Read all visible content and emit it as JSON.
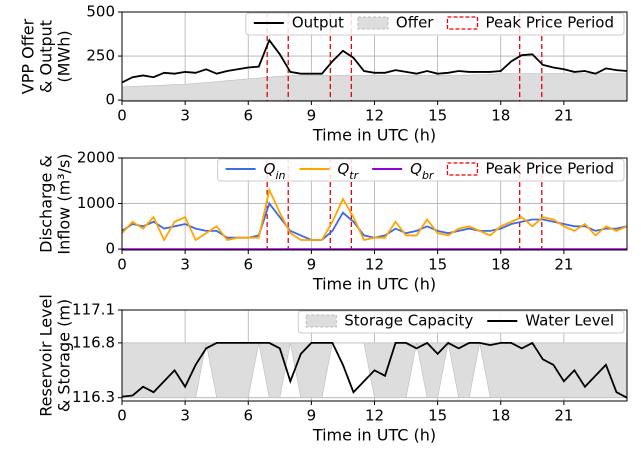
{
  "chart_data": [
    {
      "type": "line",
      "ylabel": [
        "VPP Offer",
        "& Output",
        "(MWh)"
      ],
      "xlabel": "Time in UTC (h)",
      "xlim": [
        0,
        24
      ],
      "xticks": [
        0,
        3,
        6,
        9,
        12,
        15,
        18,
        21
      ],
      "ylim": [
        -5,
        500
      ],
      "yticks": [
        0,
        250,
        500
      ],
      "grid": true,
      "legend": "upper right",
      "x": [
        0,
        0.5,
        1,
        1.5,
        2,
        2.5,
        3,
        3.5,
        4,
        4.5,
        5,
        5.5,
        6,
        6.5,
        7,
        7.5,
        8,
        8.5,
        9,
        9.5,
        10,
        10.5,
        11,
        11.5,
        12,
        12.5,
        13,
        13.5,
        14,
        14.5,
        15,
        15.5,
        16,
        16.5,
        17,
        17.5,
        18,
        18.5,
        19,
        19.5,
        20,
        20.5,
        21,
        21.5,
        22,
        22.5,
        23,
        23.5,
        24
      ],
      "series": [
        {
          "name": "Output",
          "color": "#000000",
          "kind": "line",
          "values": [
            100,
            130,
            140,
            130,
            155,
            150,
            160,
            155,
            175,
            150,
            165,
            175,
            185,
            190,
            340,
            260,
            160,
            150,
            150,
            150,
            220,
            280,
            240,
            165,
            155,
            155,
            170,
            160,
            150,
            165,
            150,
            155,
            165,
            160,
            160,
            160,
            165,
            220,
            255,
            260,
            200,
            185,
            175,
            160,
            165,
            150,
            180,
            170,
            165
          ]
        },
        {
          "name": "Offer",
          "color": "#dddddd",
          "kind": "area",
          "values": [
            75,
            78,
            80,
            82,
            85,
            88,
            90,
            95,
            100,
            105,
            110,
            115,
            120,
            125,
            130,
            135,
            140,
            140,
            140,
            140,
            140,
            140,
            140,
            140,
            140,
            140,
            140,
            140,
            140,
            140,
            140,
            140,
            140,
            142,
            144,
            146,
            150,
            150,
            150,
            150,
            150,
            150,
            150,
            150,
            150,
            150,
            150,
            150,
            150
          ]
        }
      ],
      "peak": {
        "name": "Peak Price Period",
        "color": "#e8000b",
        "periods": [
          [
            6.9,
            7.9
          ],
          [
            9.9,
            10.9
          ],
          [
            18.9,
            19.95
          ]
        ]
      }
    },
    {
      "type": "line",
      "ylabel": [
        "Discharge &",
        "Inflow (m³/s)"
      ],
      "xlabel": "Time in UTC (h)",
      "xlim": [
        0,
        24
      ],
      "xticks": [
        0,
        3,
        6,
        9,
        12,
        15,
        18,
        21
      ],
      "ylim": [
        -20,
        2000
      ],
      "yticks": [
        0,
        1000,
        2000
      ],
      "grid": true,
      "legend": "upper right",
      "x": [
        0,
        0.5,
        1,
        1.5,
        2,
        2.5,
        3,
        3.5,
        4,
        4.5,
        5,
        5.5,
        6,
        6.5,
        7,
        7.5,
        8,
        8.5,
        9,
        9.5,
        10,
        10.5,
        11,
        11.5,
        12,
        12.5,
        13,
        13.5,
        14,
        14.5,
        15,
        15.5,
        16,
        16.5,
        17,
        17.5,
        18,
        18.5,
        19,
        19.5,
        20,
        20.5,
        21,
        21.5,
        22,
        22.5,
        23,
        23.5,
        24
      ],
      "series": [
        {
          "name": "Q",
          "sub": "in",
          "color": "#4169e1",
          "kind": "line",
          "values": [
            400,
            550,
            500,
            600,
            450,
            500,
            550,
            450,
            400,
            400,
            250,
            250,
            250,
            300,
            1000,
            700,
            400,
            300,
            200,
            200,
            400,
            800,
            600,
            300,
            250,
            300,
            450,
            350,
            400,
            500,
            400,
            350,
            400,
            450,
            400,
            400,
            450,
            550,
            600,
            650,
            650,
            600,
            550,
            500,
            500,
            400,
            450,
            450,
            500
          ]
        },
        {
          "name": "Q",
          "sub": "tr",
          "color": "#ffa500",
          "kind": "line",
          "values": [
            350,
            600,
            450,
            700,
            200,
            600,
            700,
            200,
            350,
            500,
            200,
            250,
            250,
            250,
            1300,
            800,
            350,
            200,
            200,
            200,
            600,
            1100,
            700,
            200,
            250,
            250,
            600,
            300,
            300,
            650,
            350,
            300,
            450,
            500,
            400,
            300,
            500,
            600,
            700,
            500,
            700,
            650,
            500,
            400,
            550,
            300,
            500,
            400,
            500
          ]
        },
        {
          "name": "Q",
          "sub": "br",
          "color": "#9400d3",
          "kind": "line",
          "values": [
            0,
            0,
            0,
            0,
            0,
            0,
            0,
            0,
            0,
            0,
            0,
            0,
            0,
            0,
            0,
            0,
            0,
            0,
            0,
            0,
            0,
            0,
            0,
            0,
            0,
            0,
            0,
            0,
            0,
            0,
            0,
            0,
            0,
            0,
            0,
            0,
            0,
            0,
            0,
            0,
            0,
            0,
            0,
            0,
            0,
            0,
            0,
            0,
            0
          ]
        }
      ],
      "peak": {
        "name": "Peak Price Period",
        "color": "#e8000b",
        "periods": [
          [
            6.9,
            7.9
          ],
          [
            9.9,
            10.9
          ],
          [
            18.9,
            19.95
          ]
        ]
      }
    },
    {
      "type": "line",
      "ylabel": [
        "Reservoir Level",
        "& Storage (m)"
      ],
      "xlabel": "Time in UTC (h)",
      "xlim": [
        0,
        24
      ],
      "xticks": [
        0,
        3,
        6,
        9,
        12,
        15,
        18,
        21
      ],
      "ylim": [
        116.27,
        117.1
      ],
      "yticks": [
        116.3,
        116.8,
        117.1
      ],
      "grid": true,
      "legend": "upper right",
      "x": [
        0,
        0.5,
        1,
        1.5,
        2,
        2.5,
        3,
        3.5,
        4,
        4.5,
        5,
        5.5,
        6,
        6.5,
        7,
        7.5,
        8,
        8.5,
        9,
        9.5,
        10,
        10.5,
        11,
        11.5,
        12,
        12.5,
        13,
        13.5,
        14,
        14.5,
        15,
        15.5,
        16,
        16.5,
        17,
        17.5,
        18,
        18.5,
        19,
        19.5,
        20,
        20.5,
        21,
        21.5,
        22,
        22.5,
        23,
        23.5,
        24
      ],
      "series": [
        {
          "name": "Storage Capacity",
          "color": "#dddddd",
          "kind": "band",
          "upper": [
            116.8,
            116.8,
            116.8,
            116.8,
            116.8,
            116.8,
            116.8,
            116.8,
            116.8,
            116.8,
            116.8,
            116.8,
            116.8,
            116.8,
            116.8,
            116.8,
            116.8,
            116.8,
            116.8,
            116.8,
            116.8,
            116.8,
            116.8,
            116.8,
            116.8,
            116.8,
            116.8,
            116.8,
            116.8,
            116.8,
            116.8,
            116.8,
            116.8,
            116.8,
            116.8,
            116.8,
            116.8,
            116.8,
            116.8,
            116.8,
            116.8,
            116.8,
            116.8,
            116.8,
            116.8,
            116.8,
            116.8,
            116.8,
            116.8
          ],
          "lower": [
            116.3,
            116.3,
            116.3,
            116.3,
            116.3,
            116.3,
            116.3,
            116.3,
            116.8,
            116.3,
            116.3,
            116.3,
            116.3,
            116.8,
            116.3,
            116.3,
            116.8,
            116.3,
            116.3,
            116.3,
            116.8,
            116.8,
            116.8,
            116.8,
            116.3,
            116.3,
            116.3,
            116.3,
            116.8,
            116.3,
            116.3,
            116.8,
            116.3,
            116.3,
            116.8,
            116.3,
            116.3,
            116.3,
            116.3,
            116.3,
            116.3,
            116.3,
            116.3,
            116.3,
            116.3,
            116.3,
            116.3,
            116.3,
            116.3
          ]
        },
        {
          "name": "Water Level",
          "color": "#000000",
          "kind": "line",
          "values": [
            116.31,
            116.32,
            116.4,
            116.35,
            116.45,
            116.55,
            116.4,
            116.6,
            116.75,
            116.8,
            116.8,
            116.8,
            116.8,
            116.8,
            116.8,
            116.75,
            116.45,
            116.7,
            116.8,
            116.8,
            116.8,
            116.6,
            116.35,
            116.45,
            116.55,
            116.5,
            116.8,
            116.8,
            116.75,
            116.8,
            116.7,
            116.8,
            116.75,
            116.8,
            116.8,
            116.78,
            116.8,
            116.8,
            116.75,
            116.8,
            116.65,
            116.6,
            116.45,
            116.55,
            116.4,
            116.5,
            116.6,
            116.35,
            116.3
          ]
        }
      ]
    }
  ]
}
